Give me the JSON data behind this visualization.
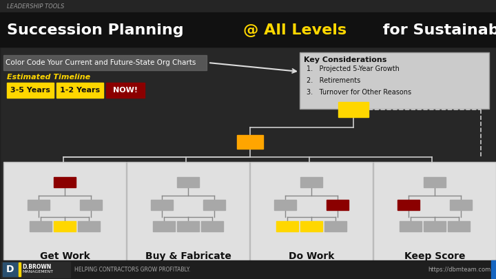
{
  "leadership_tools_text": "LEADERSHIP TOOLS",
  "title_white1": "Succession Planning ",
  "title_gold": "@ All Levels",
  "title_white2": " for Sustainable Growth",
  "color_code_text": "Color Code Your Current and Future-State Org Charts",
  "estimated_timeline_text": "Estimated Timeline",
  "timeline_labels": [
    "3-5 Years",
    "1-2 Years",
    "NOW!"
  ],
  "timeline_colors": [
    "#FFD700",
    "#FFD700",
    "#8B0000"
  ],
  "timeline_text_colors": [
    "#111111",
    "#111111",
    "#ffffff"
  ],
  "key_considerations_title": "Key Considerations",
  "key_considerations": [
    "Projected 5-Year Growth",
    "Retirements",
    "Turnover for Other Reasons"
  ],
  "categories": [
    "Get Work",
    "Buy & Fabricate",
    "Do Work",
    "Keep Score"
  ],
  "node_gray": "#a8a8a8",
  "node_red": "#8B0000",
  "node_yellow": "#FFD700",
  "node_orange": "#FFA500",
  "footer_text_left": "HELPING CONTRACTORS GROW PROFITABLY.",
  "footer_text_right": "https://dbmteam.com",
  "org_charts": [
    {
      "name": "Get Work",
      "top_color": "#8B0000",
      "mid_left_color": "#a8a8a8",
      "mid_right_color": "#a8a8a8",
      "bot_colors": [
        "#a8a8a8",
        "#FFD700",
        "#a8a8a8"
      ]
    },
    {
      "name": "Buy & Fabricate",
      "top_color": "#a8a8a8",
      "mid_left_color": "#a8a8a8",
      "mid_right_color": "#a8a8a8",
      "bot_colors": [
        "#a8a8a8",
        "#a8a8a8",
        "#a8a8a8"
      ]
    },
    {
      "name": "Do Work",
      "top_color": "#a8a8a8",
      "mid_left_color": "#a8a8a8",
      "mid_right_color": "#8B0000",
      "bot_colors": [
        "#FFD700",
        "#FFD700",
        "#a8a8a8"
      ]
    },
    {
      "name": "Keep Score",
      "top_color": "#a8a8a8",
      "mid_left_color": "#8B0000",
      "mid_right_color": "#a8a8a8",
      "bot_colors": [
        "#a8a8a8",
        "#a8a8a8",
        "#a8a8a8"
      ]
    }
  ]
}
